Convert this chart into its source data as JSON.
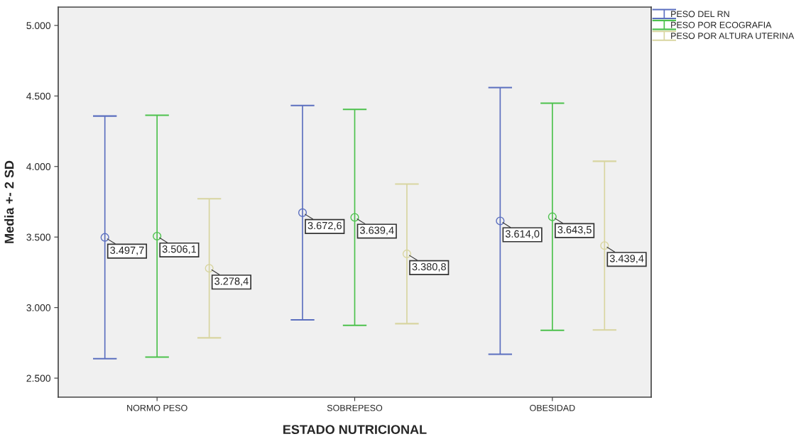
{
  "chart_data": {
    "type": "scatter",
    "xlabel": "ESTADO NUTRICIONAL",
    "ylabel": "Media +- 2 SD",
    "categories": [
      "NORMO PESO",
      "SOBREPESO",
      "OBESIDAD"
    ],
    "series": [
      {
        "name": "PESO DEL RN",
        "color": "#5b6fbf",
        "values": [
          3497.7,
          3672.6,
          3614.0
        ],
        "errors": [
          860,
          760,
          945
        ],
        "value_labels": [
          "3.497,7",
          "3.672,6",
          "3.614,0"
        ]
      },
      {
        "name": "PESO POR ECOGRAFIA",
        "color": "#4cc14c",
        "values": [
          3506.1,
          3639.4,
          3643.5
        ],
        "errors": [
          857,
          765,
          805
        ],
        "value_labels": [
          "3.506,1",
          "3.639,4",
          "3.643,5"
        ]
      },
      {
        "name": "PESO POR ALTURA UTERINA",
        "color": "#d8d5a0",
        "values": [
          3278.4,
          3380.8,
          3439.4
        ],
        "errors": [
          493,
          495,
          598
        ],
        "value_labels": [
          "3.278,4",
          "3.380,8",
          "3.439,4"
        ]
      }
    ],
    "ylim": [
      2365,
      5130
    ],
    "yticks": [
      {
        "value": 2500,
        "label": "2.500"
      },
      {
        "value": 3000,
        "label": "3.000"
      },
      {
        "value": 3500,
        "label": "3.500"
      },
      {
        "value": 4000,
        "label": "4.000"
      },
      {
        "value": 4500,
        "label": "4.500"
      },
      {
        "value": 5000,
        "label": "5.000"
      }
    ],
    "marker": "circle",
    "grid": false,
    "legend": "top right"
  }
}
